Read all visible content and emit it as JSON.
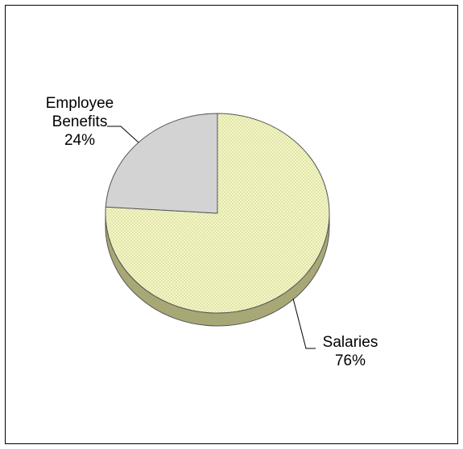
{
  "chart_data": {
    "type": "pie",
    "title": "",
    "style": "3d",
    "slices": [
      {
        "label_lines": [
          "Employee",
          "Benefits"
        ],
        "percent_label": "24%",
        "value": 24,
        "color": "#d3d3d3",
        "pattern": "none"
      },
      {
        "label_lines": [
          "Salaries"
        ],
        "percent_label": "76%",
        "value": 76,
        "color": "#f2f5c2",
        "pattern": "dotted"
      }
    ],
    "legend": "none",
    "leader_lines": true
  }
}
